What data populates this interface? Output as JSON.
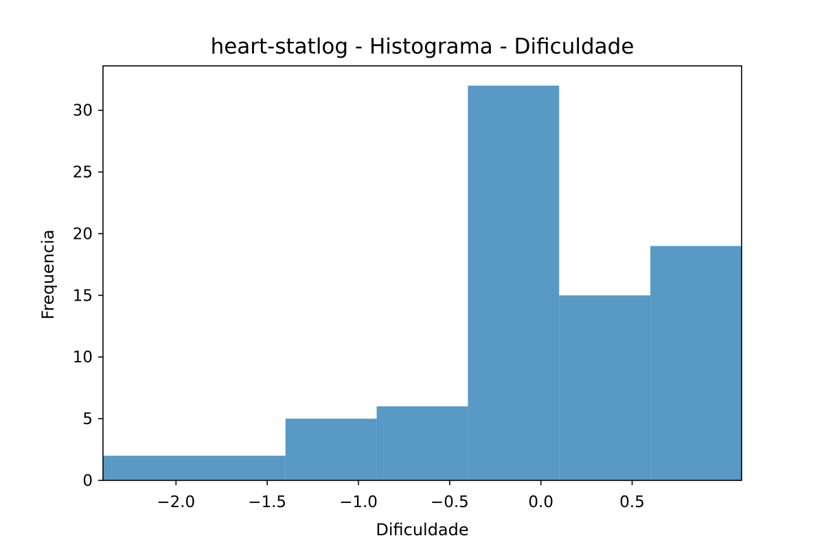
{
  "chart_data": {
    "type": "bar",
    "title": "heart-statlog - Histograma - Dificuldade",
    "xlabel": "Dificuldade",
    "ylabel": "Frequencia",
    "bin_edges": [
      -2.4,
      -1.4,
      -0.9,
      -0.4,
      0.1,
      0.6,
      1.1
    ],
    "values": [
      2,
      5,
      6,
      32,
      15,
      19
    ],
    "xlim": [
      -2.4,
      1.1
    ],
    "ylim": [
      0,
      33.6
    ],
    "xticks": [
      -2.0,
      -1.5,
      -1.0,
      -0.5,
      0.0,
      0.5
    ],
    "xtick_labels": [
      "−2.0",
      "−1.5",
      "−1.0",
      "−0.5",
      "0.0",
      "0.5"
    ],
    "yticks": [
      0,
      5,
      10,
      15,
      20,
      25,
      30
    ],
    "ytick_labels": [
      "0",
      "5",
      "10",
      "15",
      "20",
      "25",
      "30"
    ],
    "bar_color": "#5899c6",
    "grid": false,
    "legend": false
  }
}
